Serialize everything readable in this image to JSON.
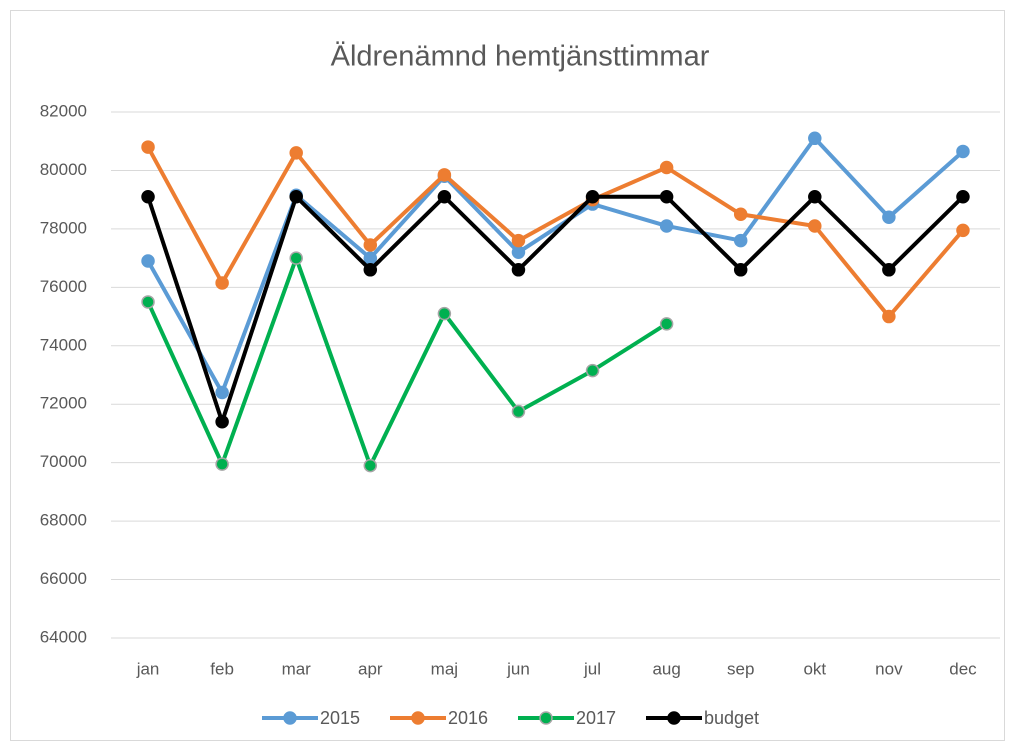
{
  "chart_data": {
    "type": "line",
    "title": "Äldrenämnd hemtjänsttimmar",
    "categories": [
      "jan",
      "feb",
      "mar",
      "apr",
      "maj",
      "jun",
      "jul",
      "aug",
      "sep",
      "okt",
      "nov",
      "dec"
    ],
    "series": [
      {
        "name": "2015",
        "color": "#5b9bd5",
        "values": [
          76900,
          72400,
          79150,
          77000,
          79800,
          77200,
          78850,
          78100,
          77600,
          81100,
          78400,
          80650
        ]
      },
      {
        "name": "2016",
        "color": "#ed7d31",
        "values": [
          80800,
          76150,
          80600,
          77450,
          79850,
          77600,
          79000,
          80100,
          78500,
          78100,
          75000,
          77950
        ]
      },
      {
        "name": "2017",
        "color": "#00b050",
        "values": [
          75500,
          69950,
          77000,
          69900,
          75100,
          71750,
          73150,
          74750,
          null,
          null,
          null,
          null
        ]
      },
      {
        "name": "budget",
        "color": "#000000",
        "values": [
          79100,
          71400,
          79100,
          76600,
          79100,
          76600,
          79100,
          79100,
          76600,
          79100,
          76600,
          79100
        ]
      }
    ],
    "ylim": [
      64000,
      82000
    ],
    "yticks": [
      64000,
      66000,
      68000,
      70000,
      72000,
      74000,
      76000,
      78000,
      80000,
      82000
    ],
    "grid": true,
    "legend": "bottom"
  }
}
